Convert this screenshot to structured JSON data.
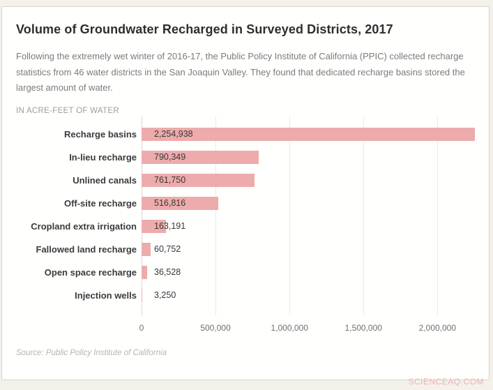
{
  "watermark": {
    "text": "SCIENCEAQ.COM"
  },
  "chart_data": {
    "type": "bar",
    "orientation": "horizontal",
    "title": "Volume of Groundwater Recharged in Surveyed Districts, 2017",
    "subtitle": "Following the extremely wet winter of 2016-17, the Public Policy Institute of California (PPIC) collected recharge statistics from 46 water districts in the San Joaquin Valley. They found that dedicated recharge basins stored the largest amount of water.",
    "unit_label": "IN ACRE-FEET OF WATER",
    "categories": [
      "Recharge basins",
      "In-lieu recharge",
      "Unlined canals",
      "Off-site recharge",
      "Cropland extra irrigation",
      "Fallowed land recharge",
      "Open space recharge",
      "Injection wells"
    ],
    "values": [
      2254938,
      790349,
      761750,
      516816,
      163191,
      60752,
      36528,
      3250
    ],
    "value_labels": [
      "2,254,938",
      "790,349",
      "761,750",
      "516,816",
      "163,191",
      "60,752",
      "36,528",
      "3,250"
    ],
    "xlabel": "",
    "ylabel": "",
    "xlim": [
      0,
      2300000
    ],
    "x_ticks": [
      0,
      500000,
      1000000,
      1500000,
      2000000
    ],
    "x_tick_labels": [
      "0",
      "500,000",
      "1,000,000",
      "1,500,000",
      "2,000,000"
    ],
    "grid": "vertical",
    "legend": "none",
    "bar_color": "#edabac",
    "source": "Source: Public Policy Institute of California"
  }
}
